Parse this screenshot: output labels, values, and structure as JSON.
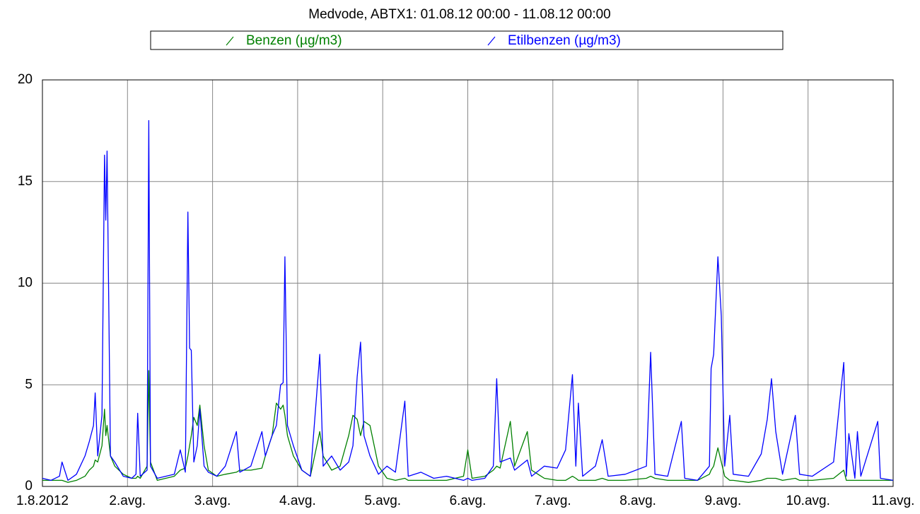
{
  "chart_data": {
    "type": "line",
    "title": "Medvode, ABTX1: 01.08.12 00:00 - 11.08.12 00:00",
    "x": [
      0,
      0.1,
      0.2,
      0.23,
      0.3,
      0.4,
      0.5,
      0.55,
      0.6,
      0.62,
      0.65,
      0.7,
      0.73,
      0.745,
      0.76,
      0.8,
      0.85,
      0.95,
      1.05,
      1.1,
      1.12,
      1.15,
      1.23,
      1.25,
      1.27,
      1.35,
      1.45,
      1.55,
      1.62,
      1.68,
      1.71,
      1.73,
      1.75,
      1.78,
      1.82,
      1.85,
      1.9,
      1.95,
      2.05,
      2.15,
      2.28,
      2.32,
      2.45,
      2.58,
      2.62,
      2.7,
      2.75,
      2.8,
      2.83,
      2.85,
      2.88,
      2.95,
      3.05,
      3.15,
      3.26,
      3.3,
      3.4,
      3.5,
      3.6,
      3.65,
      3.7,
      3.74,
      3.78,
      3.85,
      3.95,
      4.05,
      4.15,
      4.26,
      4.3,
      4.45,
      4.6,
      4.75,
      4.95,
      5.0,
      5.05,
      5.2,
      5.3,
      5.34,
      5.38,
      5.5,
      5.55,
      5.7,
      5.75,
      5.9,
      6.05,
      6.15,
      6.23,
      6.27,
      6.3,
      6.35,
      6.5,
      6.58,
      6.65,
      6.85,
      7.1,
      7.15,
      7.2,
      7.35,
      7.51,
      7.55,
      7.7,
      7.84,
      7.86,
      7.89,
      7.94,
      7.98,
      8.02,
      8.08,
      8.12,
      8.3,
      8.45,
      8.52,
      8.57,
      8.62,
      8.7,
      8.85,
      8.9,
      9.05,
      9.3,
      9.42,
      9.45,
      9.48,
      9.55,
      9.58,
      9.62,
      9.82,
      9.85,
      10.0
    ],
    "series": [
      {
        "name": "Benzen (µg/m3)",
        "color": "#008000",
        "values": [
          0.3,
          0.3,
          0.3,
          0.3,
          0.2,
          0.3,
          0.5,
          0.8,
          1.0,
          1.3,
          1.2,
          2.0,
          3.8,
          2.5,
          3.0,
          1.5,
          1.0,
          0.6,
          0.4,
          0.4,
          0.5,
          0.4,
          1.0,
          5.7,
          1.2,
          0.3,
          0.4,
          0.5,
          0.8,
          0.9,
          1.5,
          2.0,
          2.5,
          3.4,
          3.0,
          4.0,
          2.0,
          0.8,
          0.5,
          0.6,
          0.7,
          0.8,
          0.8,
          0.9,
          1.5,
          2.5,
          4.1,
          3.8,
          4.0,
          3.5,
          2.5,
          1.5,
          0.8,
          0.5,
          2.7,
          1.5,
          0.8,
          1.0,
          2.5,
          3.5,
          3.3,
          2.5,
          3.2,
          3.0,
          1.0,
          0.4,
          0.3,
          0.4,
          0.3,
          0.3,
          0.3,
          0.3,
          0.5,
          1.8,
          0.4,
          0.5,
          0.8,
          1.0,
          0.9,
          3.2,
          1.0,
          2.7,
          0.8,
          0.4,
          0.3,
          0.3,
          0.5,
          0.4,
          0.3,
          0.3,
          0.3,
          0.4,
          0.3,
          0.3,
          0.4,
          0.5,
          0.4,
          0.3,
          0.3,
          0.3,
          0.3,
          0.6,
          0.8,
          1.0,
          1.9,
          1.2,
          0.5,
          0.3,
          0.3,
          0.2,
          0.3,
          0.4,
          0.4,
          0.4,
          0.3,
          0.4,
          0.3,
          0.3,
          0.4,
          0.8,
          0.3,
          0.3,
          0.3,
          0.3,
          0.3,
          0.3,
          0.3,
          0.3
        ]
      },
      {
        "name": "Etilbenzen (µg/m3)",
        "color": "#0000ff",
        "values": [
          0.4,
          0.3,
          0.5,
          1.2,
          0.3,
          0.6,
          1.5,
          2.2,
          3.0,
          4.6,
          1.5,
          3.5,
          16.3,
          13.1,
          16.5,
          1.5,
          1.2,
          0.5,
          0.4,
          0.6,
          3.6,
          0.5,
          0.8,
          18.0,
          1.0,
          0.4,
          0.5,
          0.6,
          1.8,
          0.7,
          13.5,
          6.8,
          6.7,
          1.2,
          2.0,
          3.8,
          1.0,
          0.7,
          0.5,
          1.0,
          2.7,
          0.7,
          1.0,
          2.7,
          1.5,
          2.5,
          3.0,
          5.0,
          5.1,
          11.3,
          3.0,
          2.0,
          0.8,
          0.5,
          6.5,
          1.0,
          1.5,
          0.8,
          1.2,
          2.0,
          5.4,
          7.1,
          2.5,
          1.5,
          0.6,
          1.0,
          0.7,
          4.2,
          0.5,
          0.7,
          0.4,
          0.5,
          0.3,
          0.4,
          0.3,
          0.4,
          1.0,
          5.3,
          1.2,
          1.4,
          0.8,
          1.3,
          0.5,
          1.0,
          0.9,
          1.8,
          5.5,
          1.0,
          4.1,
          0.5,
          1.0,
          2.3,
          0.5,
          0.6,
          1.0,
          6.6,
          0.6,
          0.5,
          3.2,
          0.4,
          0.3,
          1.0,
          5.8,
          6.5,
          11.3,
          8.4,
          1.0,
          3.5,
          0.6,
          0.5,
          1.6,
          3.3,
          5.3,
          2.7,
          0.6,
          3.5,
          0.6,
          0.5,
          1.2,
          6.1,
          0.5,
          2.6,
          0.4,
          2.7,
          0.5,
          3.2,
          0.4,
          0.3
        ]
      }
    ],
    "xlim": [
      0,
      10
    ],
    "xticks": [
      {
        "value": 0,
        "label": "1.8.2012"
      },
      {
        "value": 1,
        "label": "2.avg."
      },
      {
        "value": 2,
        "label": "3.avg."
      },
      {
        "value": 3,
        "label": "4.avg."
      },
      {
        "value": 4,
        "label": "5.avg."
      },
      {
        "value": 5,
        "label": "6.avg."
      },
      {
        "value": 6,
        "label": "7.avg."
      },
      {
        "value": 7,
        "label": "8.avg."
      },
      {
        "value": 8,
        "label": "9.avg."
      },
      {
        "value": 9,
        "label": "10.avg."
      },
      {
        "value": 10,
        "label": "11.avg."
      }
    ],
    "ylim": [
      0,
      20
    ],
    "yticks": [
      0,
      5,
      10,
      15,
      20
    ],
    "grid": true
  }
}
